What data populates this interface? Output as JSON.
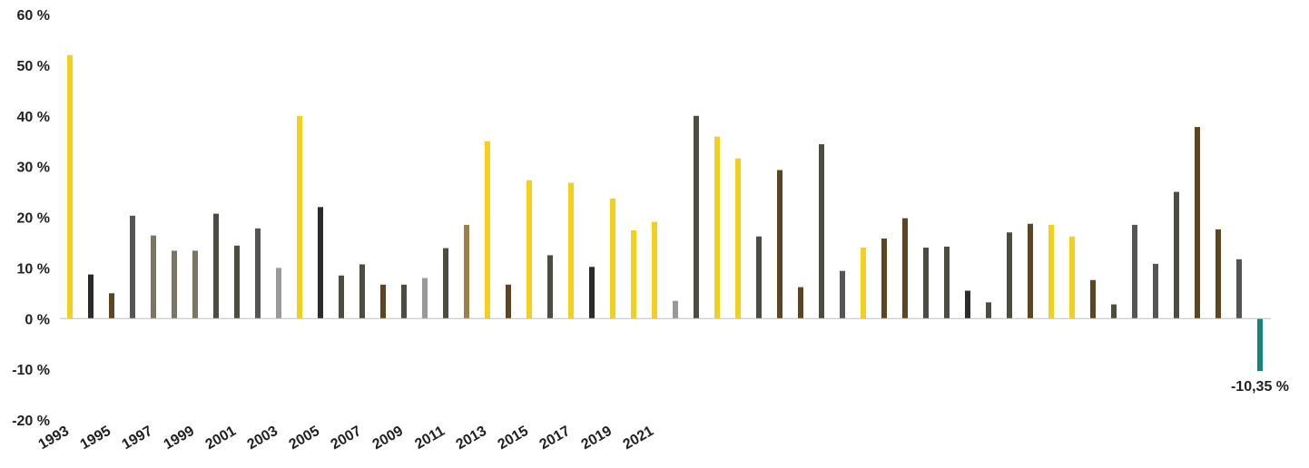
{
  "chart_data": {
    "type": "bar",
    "title": "",
    "xlabel": "",
    "ylabel": "",
    "ylim": [
      -20,
      60
    ],
    "yticks": [
      60,
      50,
      40,
      30,
      20,
      10,
      0,
      -10,
      -20
    ],
    "ytick_labels": [
      "60 %",
      "50 %",
      "40 %",
      "30 %",
      "20 %",
      "10 %",
      "0 %",
      "-10 %",
      "-20 %"
    ],
    "grid": false,
    "legend": "none",
    "x_tick_labels": [
      "1993",
      "1995",
      "1997",
      "1999",
      "2001",
      "2003",
      "2005",
      "2007",
      "2009",
      "2011",
      "2013",
      "2015",
      "2017",
      "2019",
      "2021"
    ],
    "bars": [
      {
        "value": 52.0,
        "color": "#f2d01e"
      },
      {
        "value": 8.7,
        "color": "#2b2b2b"
      },
      {
        "value": 5.0,
        "color": "#5c4520"
      },
      {
        "value": 20.3,
        "color": "#555555"
      },
      {
        "value": 16.4,
        "color": "#7a7564"
      },
      {
        "value": 13.4,
        "color": "#7a7564"
      },
      {
        "value": 13.4,
        "color": "#7a7564"
      },
      {
        "value": 20.7,
        "color": "#4c4c40"
      },
      {
        "value": 14.4,
        "color": "#4c4c40"
      },
      {
        "value": 17.8,
        "color": "#555555"
      },
      {
        "value": 10.0,
        "color": "#999999"
      },
      {
        "value": 40.0,
        "color": "#f2d01e"
      },
      {
        "value": 22.0,
        "color": "#2b2b2b"
      },
      {
        "value": 8.5,
        "color": "#4c4c40"
      },
      {
        "value": 10.7,
        "color": "#4c4c40"
      },
      {
        "value": 6.7,
        "color": "#5c4520"
      },
      {
        "value": 6.7,
        "color": "#4c4c40"
      },
      {
        "value": 8.0,
        "color": "#999999"
      },
      {
        "value": 13.9,
        "color": "#4c4c40"
      },
      {
        "value": 18.5,
        "color": "#9e7e49"
      },
      {
        "value": 35.0,
        "color": "#f2d01e"
      },
      {
        "value": 6.7,
        "color": "#5c4520"
      },
      {
        "value": 27.3,
        "color": "#f2d01e"
      },
      {
        "value": 12.5,
        "color": "#4c4c40"
      },
      {
        "value": 26.8,
        "color": "#f2d01e"
      },
      {
        "value": 10.2,
        "color": "#2b2b2b"
      },
      {
        "value": 23.7,
        "color": "#f2d01e"
      },
      {
        "value": 17.4,
        "color": "#f2d01e"
      },
      {
        "value": 19.1,
        "color": "#f2d01e"
      },
      {
        "value": 3.5,
        "color": "#999999"
      },
      {
        "value": 40.0,
        "color": "#4c4c40"
      },
      {
        "value": 35.9,
        "color": "#f2d01e"
      },
      {
        "value": 31.6,
        "color": "#f2d01e"
      },
      {
        "value": 16.2,
        "color": "#4c4c40"
      },
      {
        "value": 29.3,
        "color": "#5c4520"
      },
      {
        "value": 6.2,
        "color": "#5c4520"
      },
      {
        "value": 34.4,
        "color": "#4c4c40"
      },
      {
        "value": 9.4,
        "color": "#555555"
      },
      {
        "value": 14.0,
        "color": "#f2d01e"
      },
      {
        "value": 15.8,
        "color": "#5c4520"
      },
      {
        "value": 19.8,
        "color": "#5c4520"
      },
      {
        "value": 14.0,
        "color": "#4c4c40"
      },
      {
        "value": 14.2,
        "color": "#4c4c40"
      },
      {
        "value": 5.5,
        "color": "#2b2b2b"
      },
      {
        "value": 3.2,
        "color": "#4c4c40"
      },
      {
        "value": 17.0,
        "color": "#4c4c40"
      },
      {
        "value": 18.7,
        "color": "#5c4520"
      },
      {
        "value": 18.5,
        "color": "#f2d01e"
      },
      {
        "value": 16.2,
        "color": "#f2d01e"
      },
      {
        "value": 7.6,
        "color": "#5c4520"
      },
      {
        "value": 2.8,
        "color": "#4c4c40"
      },
      {
        "value": 18.5,
        "color": "#555555"
      },
      {
        "value": 10.8,
        "color": "#555555"
      },
      {
        "value": 25.0,
        "color": "#4c4c40"
      },
      {
        "value": 37.8,
        "color": "#5c4520"
      },
      {
        "value": 17.6,
        "color": "#5c4520"
      },
      {
        "value": 11.7,
        "color": "#555555"
      },
      {
        "value": -10.35,
        "color": "#148577"
      }
    ],
    "annotations": [
      {
        "bar_index": 57,
        "text": "-10,35 %"
      }
    ]
  }
}
